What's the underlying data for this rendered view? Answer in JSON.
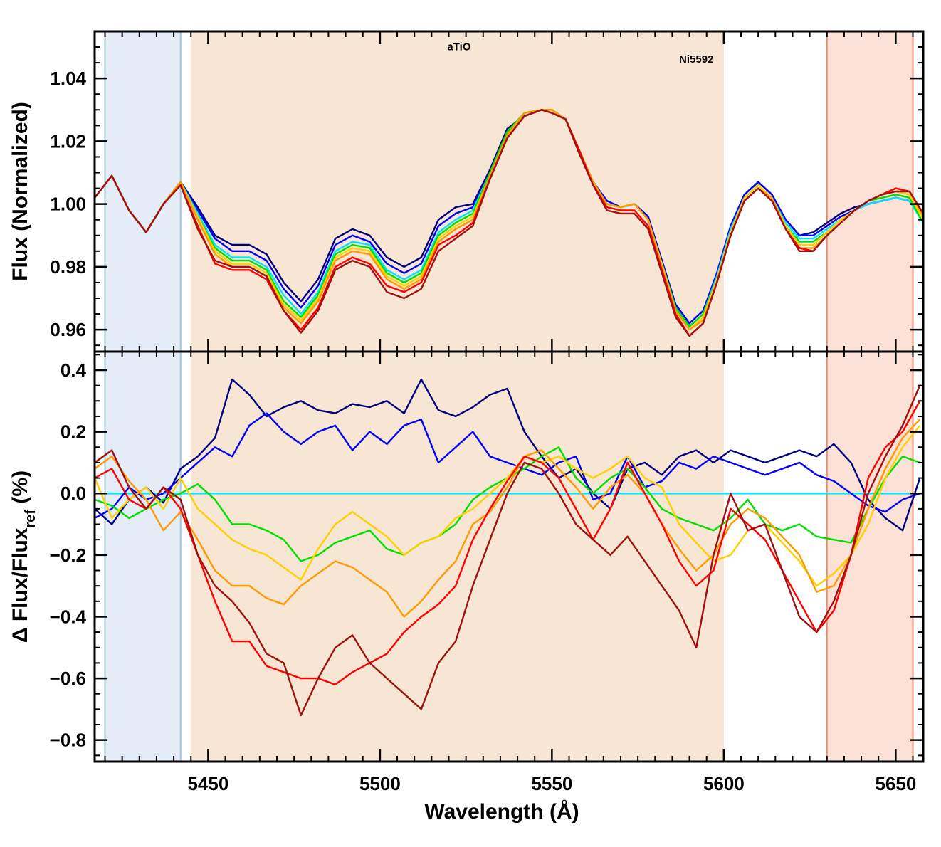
{
  "chart_data": [
    {
      "type": "line",
      "panel": "top",
      "ylabel": "Flux (Normalized)",
      "xlabel": "",
      "xlim": [
        5417,
        5658
      ],
      "ylim": [
        0.953,
        1.055
      ],
      "yticks": [
        0.96,
        0.98,
        1.0,
        1.02,
        1.04
      ],
      "yticklabels": [
        "0.96",
        "0.98",
        "1.00",
        "1.02",
        "1.04"
      ],
      "xticks": [
        5450,
        5500,
        5550,
        5600,
        5650
      ],
      "annotations": [
        {
          "text": "aTiO",
          "x": 5523,
          "y": 1.049
        },
        {
          "text": "Ni5592",
          "x": 5592,
          "y": 1.045
        }
      ],
      "regions": [
        {
          "name": "blue-continuum",
          "x0": 5420,
          "x1": 5442,
          "color": "#e4ecf7",
          "edge": "#9cc8dc"
        },
        {
          "name": "feature-band",
          "x0": 5445,
          "x1": 5600,
          "color": "#f7e6d3",
          "edge": "none"
        },
        {
          "name": "red-continuum",
          "x0": 5630,
          "x1": 5655,
          "color": "#fbe1d6",
          "edge": "#f08a6c"
        }
      ],
      "x": [
        5417,
        5422,
        5427,
        5432,
        5437,
        5442,
        5447,
        5452,
        5457,
        5462,
        5467,
        5472,
        5477,
        5482,
        5487,
        5492,
        5497,
        5502,
        5507,
        5512,
        5517,
        5522,
        5527,
        5532,
        5537,
        5542,
        5547,
        5550,
        5554,
        5558,
        5562,
        5566,
        5570,
        5574,
        5578,
        5582,
        5586,
        5590,
        5594,
        5598,
        5602,
        5606,
        5610,
        5614,
        5618,
        5622,
        5626,
        5630,
        5634,
        5638,
        5642,
        5646,
        5650,
        5654,
        5658
      ],
      "series": [
        {
          "color": "#00007f",
          "values": [
            1.002,
            1.009,
            0.998,
            0.991,
            1.0,
            1.007,
            0.999,
            0.99,
            0.987,
            0.987,
            0.984,
            0.975,
            0.969,
            0.976,
            0.989,
            0.992,
            0.99,
            0.983,
            0.98,
            0.983,
            0.995,
            0.999,
            1.0,
            1.011,
            1.024,
            1.028,
            1.03,
            1.03,
            1.027,
            1.017,
            1.007,
            1.001,
            0.999,
            1.0,
            0.996,
            0.982,
            0.968,
            0.962,
            0.966,
            0.978,
            0.993,
            1.003,
            1.007,
            1.003,
            0.995,
            0.99,
            0.991,
            0.994,
            0.997,
            0.999,
            1.0,
            1.001,
            1.002,
            1.001,
            0.995
          ]
        },
        {
          "color": "#0000ff",
          "values": [
            1.002,
            1.009,
            0.998,
            0.991,
            1.0,
            1.007,
            0.998,
            0.989,
            0.985,
            0.985,
            0.982,
            0.973,
            0.967,
            0.974,
            0.987,
            0.99,
            0.988,
            0.981,
            0.978,
            0.981,
            0.993,
            0.997,
            0.999,
            1.01,
            1.023,
            1.028,
            1.03,
            1.03,
            1.027,
            1.017,
            1.007,
            1.001,
            0.999,
            1.0,
            0.996,
            0.982,
            0.968,
            0.962,
            0.966,
            0.978,
            0.993,
            1.003,
            1.007,
            1.003,
            0.995,
            0.99,
            0.99,
            0.993,
            0.996,
            0.998,
            1.0,
            1.001,
            1.002,
            1.001,
            0.995
          ]
        },
        {
          "color": "#00e5ff",
          "values": [
            1.002,
            1.009,
            0.998,
            0.991,
            1.0,
            1.007,
            0.997,
            0.987,
            0.983,
            0.983,
            0.98,
            0.971,
            0.965,
            0.972,
            0.985,
            0.988,
            0.987,
            0.979,
            0.976,
            0.979,
            0.991,
            0.995,
            0.998,
            1.01,
            1.023,
            1.028,
            1.03,
            1.03,
            1.027,
            1.017,
            1.007,
            1.0,
            0.999,
            1.0,
            0.995,
            0.981,
            0.967,
            0.961,
            0.965,
            0.977,
            0.992,
            1.002,
            1.006,
            1.002,
            0.994,
            0.989,
            0.989,
            0.992,
            0.995,
            0.998,
            1.0,
            1.001,
            1.002,
            1.001,
            0.994
          ]
        },
        {
          "color": "#00e000",
          "values": [
            1.002,
            1.009,
            0.998,
            0.991,
            1.0,
            1.007,
            0.996,
            0.986,
            0.982,
            0.982,
            0.979,
            0.969,
            0.964,
            0.971,
            0.984,
            0.987,
            0.986,
            0.978,
            0.975,
            0.978,
            0.99,
            0.994,
            0.997,
            1.01,
            1.023,
            1.029,
            1.03,
            1.03,
            1.027,
            1.017,
            1.007,
            1.0,
            0.999,
            1.0,
            0.995,
            0.981,
            0.967,
            0.961,
            0.965,
            0.976,
            0.991,
            1.002,
            1.006,
            1.002,
            0.993,
            0.988,
            0.988,
            0.991,
            0.995,
            0.998,
            1.001,
            1.002,
            1.003,
            1.002,
            0.994
          ]
        },
        {
          "color": "#ffd000",
          "values": [
            1.002,
            1.009,
            0.998,
            0.991,
            1.0,
            1.007,
            0.996,
            0.985,
            0.981,
            0.981,
            0.978,
            0.968,
            0.963,
            0.97,
            0.983,
            0.986,
            0.985,
            0.977,
            0.974,
            0.977,
            0.989,
            0.993,
            0.996,
            1.009,
            1.022,
            1.029,
            1.03,
            1.03,
            1.027,
            1.017,
            1.007,
            1.0,
            0.999,
            1.0,
            0.995,
            0.981,
            0.966,
            0.96,
            0.964,
            0.976,
            0.991,
            1.002,
            1.006,
            1.002,
            0.993,
            0.987,
            0.987,
            0.991,
            0.995,
            0.998,
            1.001,
            1.003,
            1.004,
            1.003,
            0.995
          ]
        },
        {
          "color": "#ff9a00",
          "values": [
            1.002,
            1.009,
            0.998,
            0.991,
            1.0,
            1.007,
            0.995,
            0.984,
            0.98,
            0.98,
            0.977,
            0.967,
            0.962,
            0.969,
            0.982,
            0.985,
            0.984,
            0.976,
            0.973,
            0.976,
            0.988,
            0.992,
            0.995,
            1.009,
            1.022,
            1.029,
            1.03,
            1.03,
            1.027,
            1.017,
            1.007,
            1.0,
            0.999,
            1.0,
            0.995,
            0.98,
            0.966,
            0.96,
            0.963,
            0.975,
            0.99,
            1.001,
            1.005,
            1.002,
            0.992,
            0.986,
            0.986,
            0.99,
            0.994,
            0.998,
            1.001,
            1.003,
            1.005,
            1.004,
            0.996
          ]
        },
        {
          "color": "#ff0000",
          "values": [
            1.002,
            1.009,
            0.998,
            0.991,
            1.0,
            1.006,
            0.993,
            0.981,
            0.979,
            0.979,
            0.976,
            0.966,
            0.96,
            0.967,
            0.98,
            0.983,
            0.981,
            0.974,
            0.972,
            0.975,
            0.987,
            0.99,
            0.994,
            1.008,
            1.021,
            1.028,
            1.03,
            1.029,
            1.027,
            1.017,
            1.006,
            0.999,
            0.998,
            0.998,
            0.993,
            0.979,
            0.965,
            0.958,
            0.962,
            0.975,
            0.99,
            1.001,
            1.005,
            1.001,
            0.992,
            0.986,
            0.985,
            0.99,
            0.994,
            0.998,
            1.001,
            1.003,
            1.005,
            1.004,
            0.997
          ]
        },
        {
          "color": "#a01010",
          "values": [
            1.002,
            1.009,
            0.998,
            0.991,
            1.0,
            1.006,
            0.992,
            0.982,
            0.98,
            0.98,
            0.977,
            0.966,
            0.959,
            0.966,
            0.979,
            0.982,
            0.98,
            0.972,
            0.97,
            0.973,
            0.985,
            0.989,
            0.993,
            1.008,
            1.021,
            1.028,
            1.03,
            1.029,
            1.027,
            1.016,
            1.006,
            0.998,
            0.997,
            0.997,
            0.992,
            0.978,
            0.964,
            0.958,
            0.962,
            0.975,
            0.99,
            1.001,
            1.005,
            1.001,
            0.992,
            0.985,
            0.985,
            0.99,
            0.994,
            0.998,
            1.001,
            1.003,
            1.004,
            1.004,
            0.997
          ]
        }
      ]
    },
    {
      "type": "line",
      "panel": "bottom",
      "xlabel": "Wavelength (Å)",
      "ylabel": "Δ Flux/Flux",
      "ylabel_subscript": "ref",
      "ylabel_suffix": " (%)",
      "xlim": [
        5417,
        5658
      ],
      "ylim": [
        -0.87,
        0.46
      ],
      "yticks": [
        -0.8,
        -0.6,
        -0.4,
        -0.2,
        0.0,
        0.2,
        0.4
      ],
      "yticklabels": [
        "−0.8",
        "−0.6",
        "−0.4",
        "−0.2",
        "0.0",
        "0.2",
        "0.4"
      ],
      "xticks": [
        5450,
        5500,
        5550,
        5600,
        5650
      ],
      "xticklabels": [
        "5450",
        "5500",
        "5550",
        "5600",
        "5650"
      ],
      "reference_line": {
        "y": 0.0,
        "color": "#00e5ff"
      },
      "x": [
        5417,
        5422,
        5427,
        5432,
        5437,
        5442,
        5447,
        5452,
        5457,
        5462,
        5467,
        5472,
        5477,
        5482,
        5487,
        5492,
        5497,
        5502,
        5507,
        5512,
        5517,
        5522,
        5527,
        5532,
        5537,
        5542,
        5547,
        5552,
        5557,
        5562,
        5567,
        5572,
        5577,
        5582,
        5587,
        5592,
        5597,
        5602,
        5607,
        5612,
        5617,
        5622,
        5627,
        5632,
        5637,
        5642,
        5647,
        5652,
        5657
      ],
      "series": [
        {
          "color": "#00007f",
          "values": [
            -0.05,
            -0.1,
            -0.02,
            0.02,
            -0.03,
            0.08,
            0.12,
            0.18,
            0.37,
            0.32,
            0.25,
            0.28,
            0.3,
            0.27,
            0.26,
            0.29,
            0.28,
            0.3,
            0.26,
            0.37,
            0.27,
            0.25,
            0.28,
            0.32,
            0.34,
            0.2,
            0.12,
            0.05,
            0.08,
            0.0,
            -0.05,
            0.08,
            0.1,
            0.06,
            0.12,
            0.14,
            0.1,
            0.14,
            0.12,
            0.1,
            0.12,
            0.14,
            0.12,
            0.16,
            0.1,
            -0.02,
            -0.08,
            -0.12,
            0.05
          ]
        },
        {
          "color": "#0000ff",
          "values": [
            -0.08,
            -0.05,
            0.02,
            -0.02,
            0.0,
            0.05,
            0.1,
            0.15,
            0.12,
            0.22,
            0.26,
            0.2,
            0.16,
            0.2,
            0.22,
            0.14,
            0.2,
            0.16,
            0.22,
            0.24,
            0.1,
            0.15,
            0.2,
            0.12,
            0.1,
            0.08,
            0.06,
            0.1,
            0.12,
            -0.02,
            0.0,
            0.12,
            0.02,
            0.04,
            0.1,
            0.08,
            0.12,
            0.1,
            0.08,
            0.06,
            0.08,
            0.1,
            0.06,
            0.04,
            0.0,
            -0.04,
            -0.06,
            -0.02,
            0.0
          ]
        },
        {
          "color": "#00e000",
          "values": [
            -0.02,
            -0.04,
            -0.08,
            -0.05,
            -0.02,
            0.0,
            0.03,
            -0.02,
            -0.1,
            -0.1,
            -0.12,
            -0.15,
            -0.22,
            -0.2,
            -0.16,
            -0.14,
            -0.12,
            -0.18,
            -0.2,
            -0.16,
            -0.14,
            -0.1,
            -0.02,
            0.02,
            0.05,
            0.08,
            0.12,
            0.15,
            0.05,
            0.0,
            0.05,
            0.08,
            0.02,
            -0.05,
            -0.08,
            -0.1,
            -0.12,
            -0.08,
            -0.02,
            -0.1,
            -0.12,
            -0.1,
            -0.14,
            -0.15,
            -0.16,
            -0.05,
            0.05,
            0.12,
            0.1
          ]
        },
        {
          "color": "#ffd000",
          "values": [
            0.05,
            -0.08,
            -0.02,
            0.02,
            -0.05,
            0.05,
            -0.05,
            -0.1,
            -0.15,
            -0.18,
            -0.2,
            -0.24,
            -0.28,
            -0.18,
            -0.1,
            -0.06,
            -0.1,
            -0.14,
            -0.2,
            -0.16,
            -0.14,
            -0.08,
            -0.05,
            0.0,
            0.05,
            0.12,
            0.1,
            0.12,
            0.08,
            0.05,
            0.08,
            0.12,
            0.05,
            0.02,
            -0.1,
            -0.16,
            -0.22,
            -0.2,
            -0.12,
            -0.1,
            -0.16,
            -0.22,
            -0.3,
            -0.26,
            -0.2,
            -0.1,
            0.05,
            0.15,
            0.22
          ]
        },
        {
          "color": "#ff9a00",
          "values": [
            0.08,
            0.12,
            0.04,
            -0.02,
            -0.12,
            -0.06,
            -0.15,
            -0.25,
            -0.3,
            -0.3,
            -0.34,
            -0.36,
            -0.3,
            -0.26,
            -0.22,
            -0.24,
            -0.28,
            -0.32,
            -0.4,
            -0.35,
            -0.28,
            -0.22,
            -0.1,
            -0.06,
            0.02,
            0.12,
            0.14,
            0.08,
            0.02,
            -0.05,
            0.02,
            0.06,
            0.0,
            -0.1,
            -0.18,
            -0.25,
            -0.2,
            -0.1,
            -0.05,
            -0.08,
            -0.14,
            -0.2,
            -0.32,
            -0.3,
            -0.2,
            -0.05,
            0.08,
            0.18,
            0.24
          ]
        },
        {
          "color": "#ff0000",
          "values": [
            0.05,
            0.08,
            -0.02,
            -0.05,
            0.02,
            -0.05,
            -0.2,
            -0.35,
            -0.48,
            -0.48,
            -0.56,
            -0.58,
            -0.6,
            -0.6,
            -0.62,
            -0.58,
            -0.55,
            -0.52,
            -0.45,
            -0.4,
            -0.36,
            -0.3,
            -0.15,
            -0.05,
            0.04,
            0.12,
            0.1,
            0.05,
            -0.05,
            -0.15,
            -0.05,
            0.1,
            0.0,
            -0.1,
            -0.22,
            -0.3,
            -0.25,
            -0.05,
            -0.1,
            -0.15,
            -0.25,
            -0.35,
            -0.45,
            -0.38,
            -0.2,
            0.05,
            0.15,
            0.2,
            0.3
          ]
        },
        {
          "color": "#a01010",
          "values": [
            0.1,
            0.14,
            0.02,
            -0.05,
            0.02,
            -0.02,
            -0.2,
            -0.3,
            -0.35,
            -0.42,
            -0.52,
            -0.55,
            -0.72,
            -0.6,
            -0.5,
            -0.46,
            -0.55,
            -0.6,
            -0.65,
            -0.7,
            -0.55,
            -0.48,
            -0.3,
            -0.15,
            0.0,
            0.1,
            0.08,
            0.0,
            -0.1,
            -0.15,
            -0.2,
            -0.14,
            -0.22,
            -0.3,
            -0.38,
            -0.5,
            -0.2,
            0.0,
            -0.12,
            -0.1,
            -0.25,
            -0.4,
            -0.45,
            -0.35,
            -0.2,
            0.0,
            0.12,
            0.22,
            0.35
          ]
        }
      ]
    }
  ]
}
